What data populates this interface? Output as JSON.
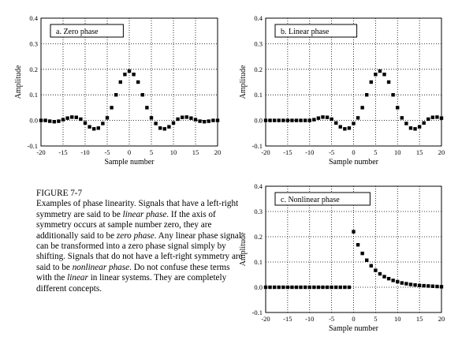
{
  "caption": {
    "figure_title": "FIGURE 7-7",
    "segments": [
      {
        "t": "Examples of phase linearity.  Signals that have a left-right symmetry are said to be ",
        "i": false
      },
      {
        "t": "linear phase",
        "i": true
      },
      {
        "t": ".  If the axis of symmetry occurs at sample number zero, they are additionally said to be ",
        "i": false
      },
      {
        "t": "zero phase",
        "i": true
      },
      {
        "t": ".  Any linear phase signal can be transformed into a zero phase signal simply by shifting.  Signals that do not have a left-right symmetry are said to be ",
        "i": false
      },
      {
        "t": "nonlinear phase",
        "i": true
      },
      {
        "t": ".  Do not confuse these terms with the ",
        "i": false
      },
      {
        "t": "linear",
        "i": true
      },
      {
        "t": " in linear systems.  They are completely different concepts.",
        "i": false
      }
    ]
  },
  "chart_data": [
    {
      "type": "scatter",
      "panel_label": "a.  Zero phase",
      "xlabel": "Sample number",
      "ylabel": "Amplitude",
      "xlim": [
        -20,
        20
      ],
      "ylim": [
        -0.1,
        0.4
      ],
      "xticks": [
        -20,
        -15,
        -10,
        -5,
        0,
        5,
        10,
        15,
        20
      ],
      "yticks": [
        -0.1,
        0.0,
        0.1,
        0.2,
        0.3,
        0.4
      ],
      "ytick_labels": [
        "-0.1",
        "0.0",
        "0.1",
        "0.2",
        "0.3",
        "0.4"
      ],
      "x": [
        -20,
        -19,
        -18,
        -17,
        -16,
        -15,
        -14,
        -13,
        -12,
        -11,
        -10,
        -9,
        -8,
        -7,
        -6,
        -5,
        -4,
        -3,
        -2,
        -1,
        0,
        1,
        2,
        3,
        4,
        5,
        6,
        7,
        8,
        9,
        10,
        11,
        12,
        13,
        14,
        15,
        16,
        17,
        18,
        19,
        20
      ],
      "y": [
        0.0,
        0.0,
        -0.003,
        -0.005,
        -0.003,
        0.003,
        0.009,
        0.013,
        0.012,
        0.005,
        -0.01,
        -0.025,
        -0.033,
        -0.03,
        -0.012,
        0.01,
        0.05,
        0.1,
        0.15,
        0.18,
        0.193,
        0.18,
        0.15,
        0.1,
        0.05,
        0.01,
        -0.012,
        -0.03,
        -0.033,
        -0.025,
        -0.01,
        0.005,
        0.012,
        0.013,
        0.009,
        0.003,
        -0.003,
        -0.005,
        -0.003,
        0.0,
        0.0
      ]
    },
    {
      "type": "scatter",
      "panel_label": "b.  Linear phase",
      "xlabel": "Sample number",
      "ylabel": "Amplitude",
      "xlim": [
        -20,
        20
      ],
      "ylim": [
        -0.1,
        0.4
      ],
      "xticks": [
        -20,
        -15,
        -10,
        -5,
        0,
        5,
        10,
        15,
        20
      ],
      "yticks": [
        -0.1,
        0.0,
        0.1,
        0.2,
        0.3,
        0.4
      ],
      "ytick_labels": [
        "-0.1",
        "0.0",
        "0.1",
        "0.2",
        "0.3",
        "0.4"
      ],
      "x": [
        -20,
        -19,
        -18,
        -17,
        -16,
        -15,
        -14,
        -13,
        -12,
        -11,
        -10,
        -9,
        -8,
        -7,
        -6,
        -5,
        -4,
        -3,
        -2,
        -1,
        0,
        1,
        2,
        3,
        4,
        5,
        6,
        7,
        8,
        9,
        10,
        11,
        12,
        13,
        14,
        15,
        16,
        17,
        18,
        19,
        20
      ],
      "y": [
        0.0,
        0.0,
        0.0,
        0.0,
        0.0,
        0.0,
        0.0,
        0.0,
        0.0,
        0.0,
        0.0,
        0.003,
        0.009,
        0.013,
        0.012,
        0.005,
        -0.01,
        -0.025,
        -0.033,
        -0.03,
        -0.012,
        0.01,
        0.05,
        0.1,
        0.15,
        0.18,
        0.193,
        0.18,
        0.15,
        0.1,
        0.05,
        0.01,
        -0.012,
        -0.03,
        -0.033,
        -0.025,
        -0.01,
        0.005,
        0.012,
        0.013,
        0.009
      ]
    },
    {
      "type": "scatter",
      "panel_label": "c.  Nonlinear phase",
      "xlabel": "Sample number",
      "ylabel": "Amplitude",
      "xlim": [
        -20,
        20
      ],
      "ylim": [
        -0.1,
        0.4
      ],
      "xticks": [
        -20,
        -15,
        -10,
        -5,
        0,
        5,
        10,
        15,
        20
      ],
      "yticks": [
        -0.1,
        0.0,
        0.1,
        0.2,
        0.3,
        0.4
      ],
      "ytick_labels": [
        "-0.1",
        "0.0",
        "0.1",
        "0.2",
        "0.3",
        "0.4"
      ],
      "x": [
        -20,
        -19,
        -18,
        -17,
        -16,
        -15,
        -14,
        -13,
        -12,
        -11,
        -10,
        -9,
        -8,
        -7,
        -6,
        -5,
        -4,
        -3,
        -2,
        -1,
        0,
        1,
        2,
        3,
        4,
        5,
        6,
        7,
        8,
        9,
        10,
        11,
        12,
        13,
        14,
        15,
        16,
        17,
        18,
        19,
        20
      ],
      "y": [
        0,
        0,
        0,
        0,
        0,
        0,
        0,
        0,
        0,
        0,
        0,
        0,
        0,
        0,
        0,
        0,
        0,
        0,
        0,
        0,
        0.22,
        0.168,
        0.134,
        0.107,
        0.085,
        0.067,
        0.053,
        0.042,
        0.034,
        0.027,
        0.022,
        0.017,
        0.014,
        0.011,
        0.009,
        0.007,
        0.006,
        0.005,
        0.004,
        0.003,
        0.002
      ]
    }
  ]
}
